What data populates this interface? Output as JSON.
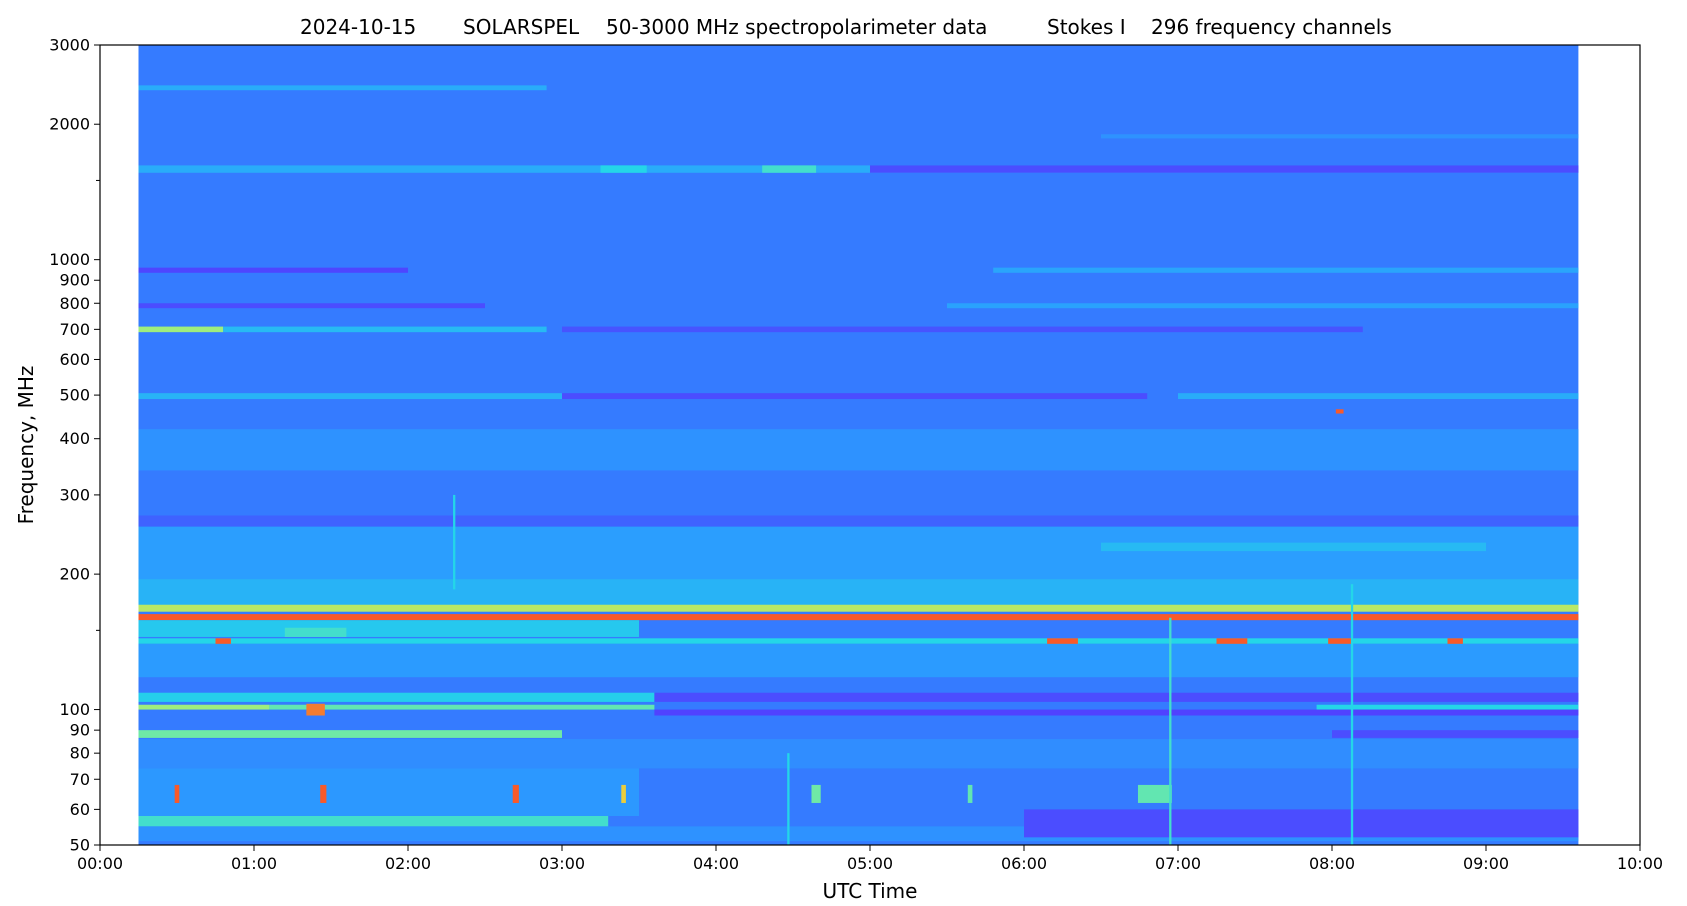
{
  "chart_data": {
    "type": "heatmap",
    "title": {
      "date": "2024-10-15",
      "instrument": "SOLARSPEL",
      "description": "50-3000 MHz spectropolarimeter data",
      "stokes": "Stokes I",
      "channels": "296 frequency channels"
    },
    "xlabel": "UTC Time",
    "ylabel": "Frequency, MHz",
    "x_axis": {
      "unit": "hours",
      "range": [
        0,
        10
      ],
      "ticks": [
        0,
        1,
        2,
        3,
        4,
        5,
        6,
        7,
        8,
        9,
        10
      ],
      "tick_labels": [
        "00:00",
        "01:00",
        "02:00",
        "03:00",
        "04:00",
        "05:00",
        "06:00",
        "07:00",
        "08:00",
        "09:00",
        "10:00"
      ],
      "data_range": [
        0.25,
        9.6
      ]
    },
    "y_axis": {
      "scale": "log",
      "range": [
        50,
        3000
      ],
      "ticks": [
        50,
        60,
        70,
        80,
        90,
        100,
        200,
        300,
        400,
        500,
        600,
        700,
        800,
        900,
        1000,
        2000,
        3000
      ],
      "tick_labels": [
        "50",
        "60",
        "70",
        "80",
        "90",
        "100",
        "200",
        "300",
        "400",
        "500",
        "600",
        "700",
        "800",
        "900",
        "1000",
        "2000",
        "3000"
      ],
      "minor_ticks": [
        150,
        1500
      ]
    },
    "colormap": [
      "#5a30ff",
      "#3a6cff",
      "#2b9cff",
      "#24d6e8",
      "#8cf08c",
      "#e8e040",
      "#ff2020"
    ],
    "background_level": 0.22,
    "bands": [
      {
        "f_lo": 2380,
        "f_hi": 2440,
        "t0": 0.25,
        "t1": 2.9,
        "level": 0.38
      },
      {
        "f_lo": 1560,
        "f_hi": 1620,
        "t0": 0.25,
        "t1": 9.6,
        "level": 0.38
      },
      {
        "f_lo": 1560,
        "f_hi": 1620,
        "t0": 4.3,
        "t1": 4.65,
        "level": 0.55
      },
      {
        "f_lo": 1560,
        "f_hi": 1620,
        "t0": 3.25,
        "t1": 3.55,
        "level": 0.5
      },
      {
        "f_lo": 1560,
        "f_hi": 1620,
        "t0": 5.0,
        "t1": 9.6,
        "level": 0.08
      },
      {
        "f_lo": 1860,
        "f_hi": 1900,
        "t0": 6.5,
        "t1": 9.6,
        "level": 0.3
      },
      {
        "f_lo": 935,
        "f_hi": 960,
        "t0": 0.25,
        "t1": 2.0,
        "level": 0.06
      },
      {
        "f_lo": 935,
        "f_hi": 960,
        "t0": 5.8,
        "t1": 9.6,
        "level": 0.36
      },
      {
        "f_lo": 780,
        "f_hi": 800,
        "t0": 0.25,
        "t1": 2.5,
        "level": 0.08
      },
      {
        "f_lo": 780,
        "f_hi": 800,
        "t0": 5.5,
        "t1": 9.6,
        "level": 0.35
      },
      {
        "f_lo": 690,
        "f_hi": 710,
        "t0": 0.25,
        "t1": 0.8,
        "level": 0.7
      },
      {
        "f_lo": 690,
        "f_hi": 710,
        "t0": 0.8,
        "t1": 2.9,
        "level": 0.42
      },
      {
        "f_lo": 690,
        "f_hi": 710,
        "t0": 3.0,
        "t1": 8.2,
        "level": 0.1
      },
      {
        "f_lo": 490,
        "f_hi": 505,
        "t0": 0.25,
        "t1": 3.0,
        "level": 0.4
      },
      {
        "f_lo": 490,
        "f_hi": 505,
        "t0": 3.0,
        "t1": 6.8,
        "level": 0.08
      },
      {
        "f_lo": 490,
        "f_hi": 505,
        "t0": 7.0,
        "t1": 9.6,
        "level": 0.38
      },
      {
        "f_lo": 340,
        "f_hi": 420,
        "t0": 0.25,
        "t1": 9.6,
        "level": 0.3
      },
      {
        "f_lo": 255,
        "f_hi": 270,
        "t0": 0.25,
        "t1": 9.6,
        "level": 0.14
      },
      {
        "f_lo": 195,
        "f_hi": 255,
        "t0": 0.25,
        "t1": 9.6,
        "level": 0.34
      },
      {
        "f_lo": 225,
        "f_hi": 235,
        "t0": 6.5,
        "t1": 9.0,
        "level": 0.42
      },
      {
        "f_lo": 170,
        "f_hi": 195,
        "t0": 0.25,
        "t1": 9.6,
        "level": 0.4
      },
      {
        "f_lo": 165,
        "f_hi": 171,
        "t0": 0.25,
        "t1": 9.6,
        "level": 0.75
      },
      {
        "f_lo": 158,
        "f_hi": 163,
        "t0": 0.25,
        "t1": 9.6,
        "level": 0.95
      },
      {
        "f_lo": 145,
        "f_hi": 158,
        "t0": 0.25,
        "t1": 3.5,
        "level": 0.46
      },
      {
        "f_lo": 140,
        "f_hi": 144,
        "t0": 0.25,
        "t1": 9.6,
        "level": 0.5
      },
      {
        "f_lo": 118,
        "f_hi": 140,
        "t0": 0.25,
        "t1": 9.6,
        "level": 0.33
      },
      {
        "f_lo": 104,
        "f_hi": 109,
        "t0": 0.25,
        "t1": 3.6,
        "level": 0.48
      },
      {
        "f_lo": 104,
        "f_hi": 109,
        "t0": 3.6,
        "t1": 9.6,
        "level": 0.08
      },
      {
        "f_lo": 100,
        "f_hi": 102.5,
        "t0": 0.25,
        "t1": 1.1,
        "level": 0.7
      },
      {
        "f_lo": 100,
        "f_hi": 102.5,
        "t0": 1.1,
        "t1": 3.6,
        "level": 0.6
      },
      {
        "f_lo": 100,
        "f_hi": 102.5,
        "t0": 7.9,
        "t1": 9.6,
        "level": 0.5
      },
      {
        "f_lo": 97,
        "f_hi": 100,
        "t0": 3.6,
        "t1": 9.6,
        "level": 0.05
      },
      {
        "f_lo": 86.5,
        "f_hi": 90,
        "t0": 0.25,
        "t1": 3.0,
        "level": 0.62
      },
      {
        "f_lo": 86.5,
        "f_hi": 90,
        "t0": 8.0,
        "t1": 9.6,
        "level": 0.08
      },
      {
        "f_lo": 74,
        "f_hi": 86,
        "t0": 0.25,
        "t1": 9.6,
        "level": 0.28
      },
      {
        "f_lo": 55,
        "f_hi": 58,
        "t0": 0.25,
        "t1": 3.3,
        "level": 0.55
      },
      {
        "f_lo": 58,
        "f_hi": 74,
        "t0": 0.25,
        "t1": 3.5,
        "level": 0.32
      },
      {
        "f_lo": 51,
        "f_hi": 55,
        "t0": 0.25,
        "t1": 9.6,
        "level": 0.3
      },
      {
        "f_lo": 52,
        "f_hi": 60,
        "t0": 6.0,
        "t1": 9.6,
        "level": 0.08
      }
    ],
    "bursts": [
      {
        "t": 1.4,
        "f_lo": 97,
        "f_hi": 103,
        "dt": 0.12,
        "level": 0.92
      },
      {
        "t": 0.5,
        "f_lo": 62,
        "f_hi": 68,
        "dt": 0.03,
        "level": 0.95
      },
      {
        "t": 1.45,
        "f_lo": 62,
        "f_hi": 68,
        "dt": 0.04,
        "level": 0.95
      },
      {
        "t": 2.7,
        "f_lo": 62,
        "f_hi": 68,
        "dt": 0.04,
        "level": 0.95
      },
      {
        "t": 3.4,
        "f_lo": 62,
        "f_hi": 68,
        "dt": 0.03,
        "level": 0.85
      },
      {
        "t": 4.65,
        "f_lo": 62,
        "f_hi": 68,
        "dt": 0.06,
        "level": 0.62
      },
      {
        "t": 5.65,
        "f_lo": 62,
        "f_hi": 68,
        "dt": 0.03,
        "level": 0.6
      },
      {
        "t": 6.85,
        "f_lo": 62,
        "f_hi": 68,
        "dt": 0.22,
        "level": 0.6
      },
      {
        "t": 0.8,
        "f_lo": 140,
        "f_hi": 144,
        "dt": 0.1,
        "level": 0.95
      },
      {
        "t": 6.25,
        "f_lo": 140,
        "f_hi": 144,
        "dt": 0.2,
        "level": 0.95
      },
      {
        "t": 7.35,
        "f_lo": 140,
        "f_hi": 144,
        "dt": 0.2,
        "level": 0.95
      },
      {
        "t": 8.05,
        "f_lo": 140,
        "f_hi": 144,
        "dt": 0.15,
        "level": 0.95
      },
      {
        "t": 8.8,
        "f_lo": 140,
        "f_hi": 144,
        "dt": 0.1,
        "level": 0.95
      },
      {
        "t": 8.05,
        "f_lo": 455,
        "f_hi": 465,
        "dt": 0.05,
        "level": 0.95
      },
      {
        "t": 1.4,
        "f_lo": 145,
        "f_hi": 152,
        "dt": 0.4,
        "level": 0.55
      },
      {
        "t": 2.3,
        "f_lo": 185,
        "f_hi": 300,
        "dt": 0.015,
        "level": 0.5
      },
      {
        "t": 4.47,
        "f_lo": 50,
        "f_hi": 80,
        "dt": 0.015,
        "level": 0.5
      },
      {
        "t": 6.95,
        "f_lo": 50,
        "f_hi": 160,
        "dt": 0.015,
        "level": 0.55
      },
      {
        "t": 8.13,
        "f_lo": 50,
        "f_hi": 190,
        "dt": 0.015,
        "level": 0.5
      }
    ]
  }
}
